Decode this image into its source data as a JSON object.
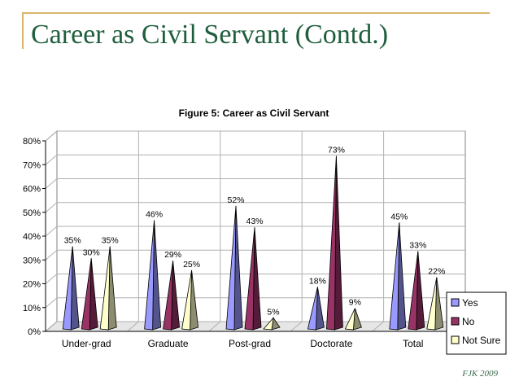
{
  "slide": {
    "title": "Career as Civil Servant (Contd.)",
    "footer": "FJK 2009"
  },
  "chart_data": {
    "type": "bar",
    "style": "3d-cone",
    "title": "Figure 5: Career as Civil Servant",
    "xlabel": "",
    "ylabel": "",
    "categories": [
      "Under-grad",
      "Graduate",
      "Post-grad",
      "Doctorate",
      "Total"
    ],
    "series": [
      {
        "name": "Yes",
        "values": [
          35,
          46,
          52,
          18,
          45
        ],
        "color": "#9999ff"
      },
      {
        "name": "No",
        "values": [
          30,
          29,
          43,
          73,
          33
        ],
        "color": "#993366"
      },
      {
        "name": "Not Sure",
        "values": [
          35,
          25,
          5,
          9,
          22
        ],
        "color": "#ffffcc"
      }
    ],
    "ylim": [
      0,
      80
    ],
    "yticks": [
      "0%",
      "10%",
      "20%",
      "30%",
      "40%",
      "50%",
      "60%",
      "70%",
      "80%"
    ],
    "grid": true,
    "legend_position": "right",
    "value_suffix": "%"
  }
}
